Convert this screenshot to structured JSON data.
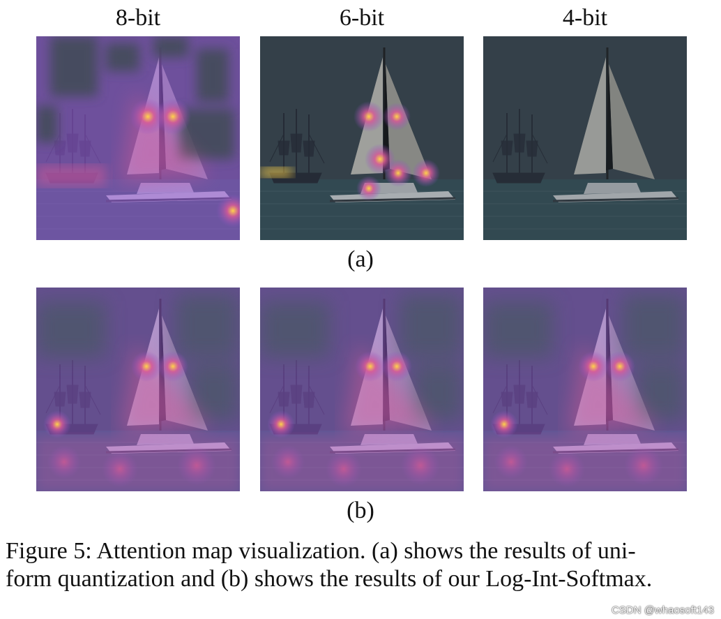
{
  "columns": [
    "8-bit",
    "6-bit",
    "4-bit"
  ],
  "rows": [
    {
      "label": "(a)",
      "panels": [
        {
          "name": "uniform-8bit",
          "variant": "uniform-8bit"
        },
        {
          "name": "uniform-6bit",
          "variant": "uniform-6bit"
        },
        {
          "name": "uniform-4bit",
          "variant": "uniform-4bit"
        }
      ]
    },
    {
      "label": "(b)",
      "panels": [
        {
          "name": "log-int-softmax-8bit",
          "variant": "log"
        },
        {
          "name": "log-int-softmax-6bit",
          "variant": "log"
        },
        {
          "name": "log-int-softmax-4bit",
          "variant": "log"
        }
      ]
    }
  ],
  "caption": {
    "line1": "Figure 5: Attention map visualization. (a) shows the results of uni-",
    "line2": "form quantization and (b) shows the results of our Log-Int-Softmax."
  },
  "watermark": "CSDN @whaosoft143",
  "colors": {
    "sky": "#3f4c55",
    "sea": "#3d5a62",
    "attention_low": "#8a52c8",
    "attention_mid": "#d65a96",
    "attention_high": "#ffd34a"
  }
}
